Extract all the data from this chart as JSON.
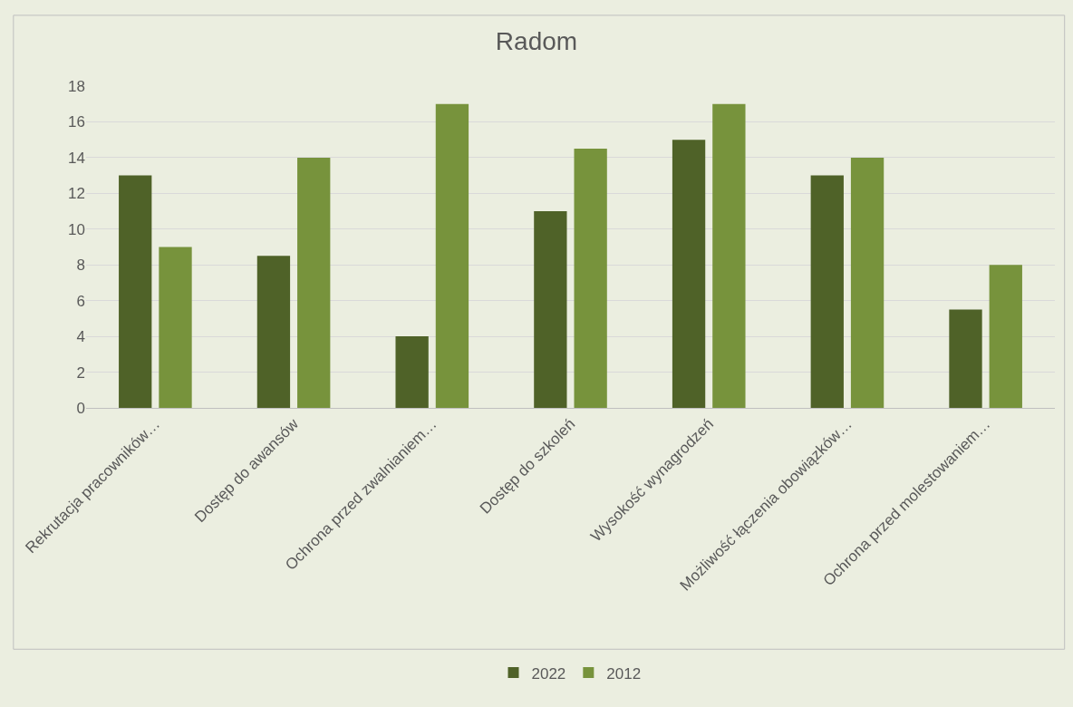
{
  "chart_data": {
    "type": "bar",
    "title": "Radom",
    "categories": [
      "Rekrutacja pracowników…",
      "Dostęp do awansów",
      "Ochrona przed zwalnianiem…",
      "Dostęp do szkoleń",
      "Wysokość wynagrodzeń",
      "Możliwość łączenia obowiązków…",
      "Ochrona przed molestowaniem…"
    ],
    "series": [
      {
        "name": "2022",
        "color": "#4f6228",
        "values": [
          13,
          8.5,
          4,
          11,
          15,
          13,
          5.5
        ]
      },
      {
        "name": "2012",
        "color": "#77933c",
        "values": [
          9,
          14,
          17,
          14.5,
          17,
          14,
          8
        ]
      }
    ],
    "ylim": [
      0,
      18
    ],
    "yticks": [
      0,
      2,
      4,
      6,
      8,
      10,
      12,
      14,
      16,
      18
    ],
    "grid": "y",
    "legend": "bottom"
  }
}
